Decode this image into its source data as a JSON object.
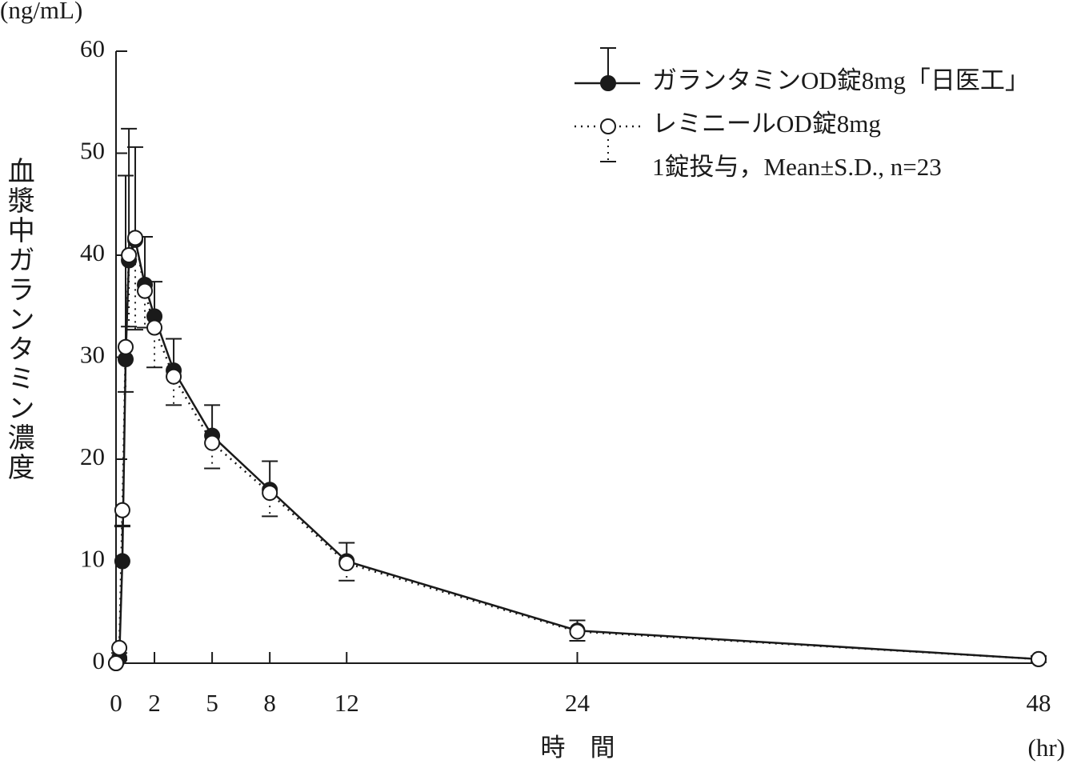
{
  "chart_data": {
    "type": "line",
    "y_unit": "(ng/mL)",
    "ylabel": "血漿中ガランタミン濃度",
    "xlabel": "時　間",
    "x_unit": "(hr)",
    "annotation": "1錠投与，Mean±S.D., n=23",
    "x": [
      0,
      0.17,
      0.33,
      0.5,
      0.67,
      1,
      1.5,
      2,
      3,
      5,
      8,
      12,
      24,
      48
    ],
    "series": [
      {
        "name": "ガランタミンOD錠8mg「日医工」",
        "color": "#1a1a1a",
        "marker": "filled",
        "line": "solid",
        "error_direction": "up",
        "values": [
          0,
          0.5,
          10,
          29.8,
          39.5,
          41.5,
          37.1,
          34,
          28.7,
          22.3,
          17,
          10,
          3.2,
          0.4
        ],
        "errors": [
          0,
          0.5,
          3.5,
          18,
          12.9,
          9.1,
          4.7,
          3.4,
          3.1,
          3,
          2.8,
          1.8,
          1,
          0.3
        ]
      },
      {
        "name": "レミニールOD錠8mg",
        "color": "#1a1a1a",
        "marker": "open",
        "line": "dotted",
        "error_direction": "down",
        "values": [
          0,
          1.5,
          15,
          31,
          40,
          41.7,
          36.5,
          32.9,
          28.1,
          21.6,
          16.7,
          9.8,
          3.1,
          0.4
        ],
        "errors": [
          0,
          1.2,
          1.6,
          4.4,
          7,
          9,
          3.6,
          3.9,
          2.8,
          2.5,
          2.3,
          1.7,
          0.9,
          0.3
        ]
      }
    ],
    "xlim": [
      0,
      48
    ],
    "xticks": [
      0,
      2,
      5,
      8,
      12,
      24,
      48
    ],
    "ylim": [
      0,
      60
    ],
    "yticks": [
      0,
      10,
      20,
      30,
      40,
      50,
      60
    ]
  }
}
